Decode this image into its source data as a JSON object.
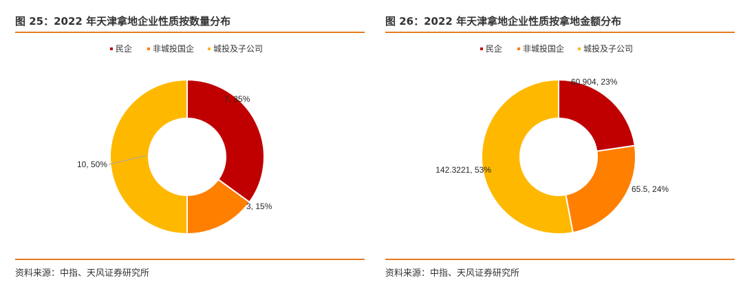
{
  "chart_data": [
    {
      "type": "pie",
      "title": "图 25：2022 年天津拿地企业性质按数量分布",
      "source": "资料来源：中指、天风证券研究所",
      "legend_position": "top",
      "categories": [
        "民企",
        "非城投国企",
        "城投及子公司"
      ],
      "values": [
        7,
        3,
        10
      ],
      "data_labels": [
        "7, 35%",
        "3, 15%",
        "10, 50%"
      ],
      "colors": [
        "#c00000",
        "#ff7f00",
        "#ffb800"
      ]
    },
    {
      "type": "pie",
      "title": "图 26：2022 年天津拿地企业性质按拿地金额分布",
      "source": "资料来源：中指、天风证券研究所",
      "legend_position": "top",
      "categories": [
        "民企",
        "非城投国企",
        "城投及子公司"
      ],
      "values": [
        60.904,
        65.5,
        142.3221
      ],
      "data_labels": [
        "60.904, 23%",
        "65.5, 24%",
        "142.3221, 53%"
      ],
      "colors": [
        "#c00000",
        "#ff7f00",
        "#ffb800"
      ]
    }
  ]
}
